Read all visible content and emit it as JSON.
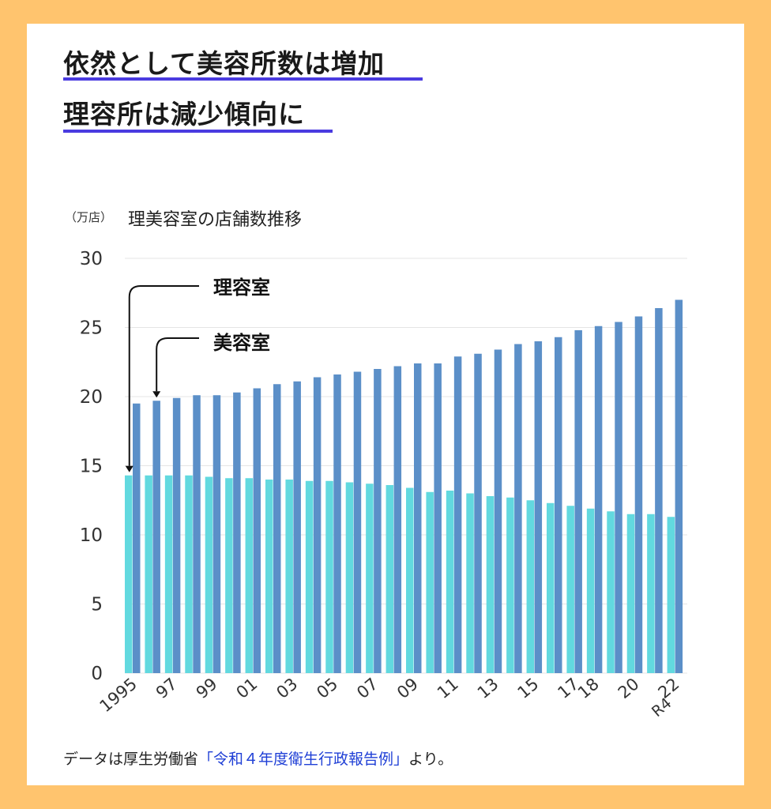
{
  "headline": {
    "line1": "依然として美容所数は増加",
    "line2": "理容所は減少傾向に"
  },
  "chart_unit": "（万店）",
  "chart_title": "理美容室の店舗数推移",
  "source": {
    "prefix": "データは厚生労働省",
    "link": "「令和４年度衛生行政報告例」",
    "suffix": "より。"
  },
  "colors": {
    "background": "#FFC46E",
    "accent_underline": "#4A3BE0",
    "biyoushitsu_bar": "#5B8FC8",
    "riyoushitsu_bar": "#62D9DF",
    "source_link": "#1F3FD6"
  },
  "chart_data": {
    "type": "bar",
    "title": "理美容室の店舗数推移",
    "ylabel": "（万店）",
    "ylim": [
      0,
      30
    ],
    "yticks": [
      0,
      5,
      10,
      15,
      20,
      25,
      30
    ],
    "grid": true,
    "categories": [
      "1995",
      "96",
      "97",
      "98",
      "99",
      "2000",
      "01",
      "02",
      "03",
      "04",
      "05",
      "06",
      "07",
      "08",
      "09",
      "10",
      "11",
      "12",
      "13",
      "14",
      "15",
      "16",
      "17",
      "18",
      "19",
      "20",
      "21",
      "22"
    ],
    "xtick_labels": [
      {
        "index": 0,
        "label": "1995"
      },
      {
        "index": 2,
        "label": "97"
      },
      {
        "index": 4,
        "label": "99"
      },
      {
        "index": 6,
        "label": "01"
      },
      {
        "index": 8,
        "label": "03"
      },
      {
        "index": 10,
        "label": "05"
      },
      {
        "index": 12,
        "label": "07"
      },
      {
        "index": 14,
        "label": "09"
      },
      {
        "index": 16,
        "label": "11"
      },
      {
        "index": 18,
        "label": "13"
      },
      {
        "index": 20,
        "label": "15"
      },
      {
        "index": 22,
        "label": "17"
      },
      {
        "index": 23,
        "label": "18"
      },
      {
        "index": 25,
        "label": "20"
      },
      {
        "index": 27,
        "label": "22"
      }
    ],
    "xtick_sublabel": {
      "index": 27,
      "label": "R4"
    },
    "series": [
      {
        "name": "理容室",
        "color": "#62D9DF",
        "values": [
          14.3,
          14.3,
          14.3,
          14.3,
          14.2,
          14.1,
          14.1,
          14.0,
          14.0,
          13.9,
          13.9,
          13.8,
          13.7,
          13.6,
          13.4,
          13.1,
          13.2,
          13.0,
          12.8,
          12.7,
          12.5,
          12.3,
          12.1,
          11.9,
          11.7,
          11.5,
          11.5,
          11.3
        ]
      },
      {
        "name": "美容室",
        "color": "#5B8FC8",
        "values": [
          19.5,
          19.7,
          19.9,
          20.1,
          20.1,
          20.3,
          20.6,
          20.9,
          21.1,
          21.4,
          21.6,
          21.8,
          22.0,
          22.2,
          22.4,
          22.4,
          22.9,
          23.1,
          23.4,
          23.8,
          24.0,
          24.3,
          24.8,
          25.1,
          25.4,
          25.8,
          26.4,
          27.0
        ]
      }
    ],
    "annotations": [
      {
        "text": "理容室",
        "series": "理容室",
        "category_index": 0
      },
      {
        "text": "美容室",
        "series": "美容室",
        "category_index": 1
      }
    ]
  }
}
